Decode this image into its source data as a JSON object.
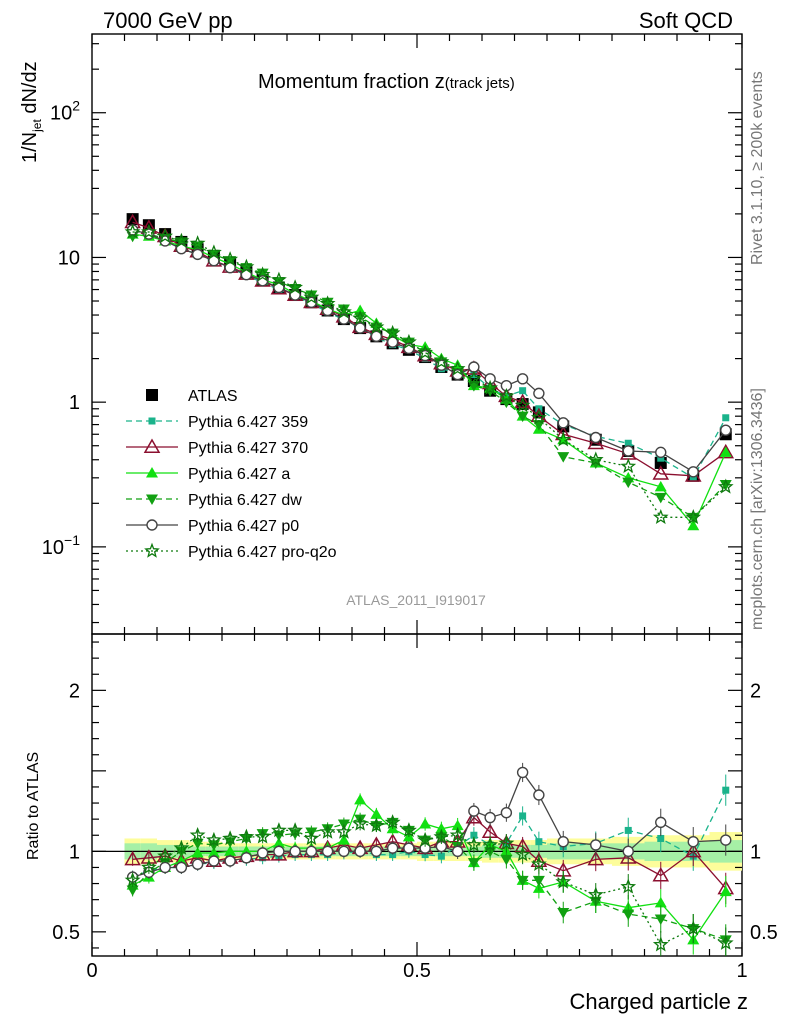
{
  "header": {
    "energy": "7000 GeV pp",
    "process": "Soft QCD"
  },
  "side_labels": {
    "rivet": "Rivet 3.1.10, ≥ 200k events",
    "mcplots": "mcplots.cern.ch [arXiv:1306.3436]"
  },
  "colors": {
    "atlas": "#000000",
    "p359": "#1ab38b",
    "p370": "#8b0f2f",
    "pa": "#11e011",
    "pdw": "#11a011",
    "pp0": "#444444",
    "pq2o": "#0e7a0e",
    "band_outer": "#fdfd9b",
    "band_inner": "#a6f0a6"
  },
  "chart_data": [
    {
      "type": "line",
      "title": "Momentum fraction z",
      "title_sub": "(track jets)",
      "ylabel_parts": [
        "1/N",
        "jet",
        " dN/dz"
      ],
      "analysis_tag": "ATLAS_2011_I919017",
      "yscale": "log",
      "ylim": [
        0.025,
        350
      ],
      "xlim": [
        0,
        1
      ],
      "y_ticks": [
        {
          "value": 100,
          "base": "10",
          "exp": "2"
        },
        {
          "value": 10,
          "base": "10",
          "exp": ""
        },
        {
          "value": 1,
          "base": "1",
          "exp": ""
        },
        {
          "value": 0.1,
          "base": "10",
          "exp": "−1"
        }
      ],
      "legend_position": "left",
      "x": [
        0.0625,
        0.0875,
        0.1125,
        0.1375,
        0.1625,
        0.1875,
        0.2125,
        0.2375,
        0.2625,
        0.2875,
        0.3125,
        0.3375,
        0.3625,
        0.3875,
        0.4125,
        0.4375,
        0.4625,
        0.4875,
        0.5125,
        0.5375,
        0.5625,
        0.5875,
        0.6125,
        0.6375,
        0.6625,
        0.6875,
        0.725,
        0.775,
        0.825,
        0.875,
        0.925,
        0.975
      ],
      "series": [
        {
          "name": "ATLAS",
          "key": "atlas",
          "marker": "square",
          "dash": "none",
          "values": [
            18.4,
            16.7,
            14.5,
            12.8,
            11.4,
            10.1,
            9.0,
            7.9,
            7.0,
            6.2,
            5.5,
            4.9,
            4.3,
            3.75,
            3.25,
            2.85,
            2.55,
            2.3,
            2.05,
            1.75,
            1.55,
            1.4,
            1.2,
            1.05,
            0.97,
            0.85,
            0.68,
            0.55,
            0.46,
            0.38,
            0.31,
            0.6
          ]
        },
        {
          "name": "Pythia 6.427 359",
          "key": "p359",
          "marker": "smallsquare",
          "dash": "6,4",
          "values": [
            15.5,
            14.0,
            13.0,
            11.5,
            10.5,
            9.4,
            8.5,
            7.5,
            6.7,
            6.0,
            5.4,
            4.8,
            4.2,
            3.7,
            3.25,
            2.8,
            2.5,
            2.3,
            2.0,
            1.7,
            1.6,
            1.55,
            1.25,
            1.1,
            1.2,
            0.9,
            0.7,
            0.58,
            0.52,
            0.41,
            0.3,
            0.78
          ]
        },
        {
          "name": "Pythia 6.427 370",
          "key": "p370",
          "marker": "tri-open",
          "dash": "none",
          "values": [
            17.5,
            16.0,
            14.0,
            12.0,
            11.0,
            9.5,
            8.6,
            7.7,
            6.9,
            6.1,
            5.5,
            4.9,
            4.4,
            3.9,
            3.3,
            2.95,
            2.7,
            2.4,
            2.1,
            1.85,
            1.65,
            1.7,
            1.35,
            1.1,
            1.0,
            0.8,
            0.6,
            0.52,
            0.44,
            0.32,
            0.31,
            0.45
          ]
        },
        {
          "name": "Pythia 6.427 a",
          "key": "pa",
          "marker": "tri-filled",
          "dash": "none",
          "values": [
            14.5,
            14.0,
            13.0,
            12.0,
            11.3,
            10.0,
            9.0,
            7.9,
            7.0,
            6.5,
            5.6,
            5.0,
            4.4,
            4.0,
            4.3,
            3.5,
            2.9,
            2.5,
            2.4,
            2.0,
            1.8,
            1.3,
            1.25,
            1.05,
            0.8,
            0.65,
            0.55,
            0.38,
            0.3,
            0.26,
            0.14,
            0.45
          ]
        },
        {
          "name": "Pythia 6.427 dw",
          "key": "pdw",
          "marker": "tri-down",
          "dash": "6,4",
          "values": [
            14.0,
            14.5,
            13.5,
            12.8,
            12.0,
            10.5,
            9.5,
            8.5,
            7.8,
            6.8,
            6.1,
            5.5,
            4.9,
            4.4,
            3.9,
            3.3,
            3.0,
            2.6,
            2.2,
            1.9,
            1.6,
            1.3,
            1.2,
            1.0,
            0.8,
            0.7,
            0.42,
            0.38,
            0.28,
            0.22,
            0.16,
            0.27
          ]
        },
        {
          "name": "Pythia 6.427 p0",
          "key": "pp0",
          "marker": "circle-open",
          "dash": "none",
          "values": [
            15.5,
            14.5,
            13.0,
            11.5,
            10.5,
            9.5,
            8.5,
            7.6,
            6.9,
            6.2,
            5.5,
            4.9,
            4.3,
            3.75,
            3.25,
            2.85,
            2.6,
            2.35,
            2.1,
            1.8,
            1.55,
            1.75,
            1.45,
            1.3,
            1.45,
            1.15,
            0.72,
            0.57,
            0.46,
            0.45,
            0.33,
            0.64
          ]
        },
        {
          "name": "Pythia 6.427 pro-q2o",
          "key": "pq2o",
          "marker": "star",
          "dash": "2,3",
          "values": [
            15.0,
            15.0,
            14.0,
            13.0,
            12.5,
            10.8,
            9.7,
            8.6,
            7.6,
            7.0,
            6.2,
            5.3,
            4.8,
            4.2,
            3.8,
            3.3,
            3.0,
            2.6,
            2.2,
            1.9,
            1.7,
            1.45,
            1.25,
            1.1,
            0.95,
            0.78,
            0.55,
            0.4,
            0.36,
            0.16,
            0.16,
            0.26
          ]
        }
      ]
    },
    {
      "type": "line",
      "ylabel": "Ratio to ATLAS",
      "xlabel": "Charged particle z",
      "ylim": [
        0.35,
        2.35
      ],
      "xlim": [
        0,
        1
      ],
      "y_ticks": [
        {
          "value": 2,
          "label": "2"
        },
        {
          "value": 1,
          "label": "1"
        },
        {
          "value": 0.5,
          "label": "0.5"
        }
      ],
      "x_ticks": [
        {
          "value": 0,
          "label": "0"
        },
        {
          "value": 0.5,
          "label": "0.5"
        },
        {
          "value": 1,
          "label": "1"
        }
      ],
      "reference_line": 1,
      "band_edges": [
        0.05,
        0.075,
        0.1,
        0.125,
        0.15,
        0.175,
        0.2,
        0.225,
        0.25,
        0.275,
        0.3,
        0.325,
        0.35,
        0.375,
        0.4,
        0.425,
        0.45,
        0.475,
        0.5,
        0.525,
        0.55,
        0.575,
        0.6,
        0.625,
        0.65,
        0.675,
        0.7,
        0.75,
        0.8,
        0.85,
        0.9,
        0.95,
        1.0
      ],
      "band_outer_halfwidth": [
        0.08,
        0.08,
        0.07,
        0.07,
        0.06,
        0.06,
        0.05,
        0.05,
        0.05,
        0.05,
        0.05,
        0.05,
        0.05,
        0.05,
        0.05,
        0.05,
        0.05,
        0.05,
        0.06,
        0.06,
        0.06,
        0.06,
        0.07,
        0.07,
        0.07,
        0.07,
        0.08,
        0.08,
        0.09,
        0.1,
        0.1,
        0.12
      ],
      "band_inner_halfwidth": [
        0.05,
        0.05,
        0.04,
        0.04,
        0.03,
        0.03,
        0.03,
        0.03,
        0.03,
        0.03,
        0.03,
        0.03,
        0.03,
        0.03,
        0.03,
        0.03,
        0.03,
        0.03,
        0.03,
        0.03,
        0.03,
        0.03,
        0.04,
        0.04,
        0.04,
        0.04,
        0.05,
        0.05,
        0.05,
        0.06,
        0.06,
        0.07
      ],
      "series": [
        {
          "key": "p359",
          "values": [
            0.84,
            0.88,
            0.9,
            0.9,
            0.92,
            0.93,
            0.95,
            0.95,
            0.96,
            0.97,
            0.98,
            0.98,
            0.98,
            0.99,
            1.0,
            0.98,
            0.98,
            1.0,
            0.98,
            0.97,
            1.03,
            1.1,
            1.04,
            1.05,
            1.22,
            1.06,
            1.03,
            1.05,
            1.13,
            1.08,
            0.97,
            1.38
          ]
        },
        {
          "key": "p370",
          "values": [
            0.95,
            0.96,
            0.97,
            0.94,
            0.96,
            0.94,
            0.96,
            0.97,
            0.98,
            0.98,
            1.0,
            1.0,
            1.02,
            1.04,
            1.02,
            1.04,
            1.06,
            1.04,
            1.02,
            1.06,
            1.06,
            1.21,
            1.12,
            1.05,
            1.03,
            0.94,
            0.88,
            0.95,
            0.96,
            0.85,
            1.0,
            0.77
          ]
        },
        {
          "key": "pa",
          "values": [
            0.79,
            0.84,
            0.9,
            0.94,
            0.99,
            0.99,
            1.0,
            1.0,
            1.0,
            1.05,
            1.02,
            1.02,
            1.02,
            1.07,
            1.32,
            1.23,
            1.14,
            1.09,
            1.17,
            1.14,
            1.16,
            0.93,
            1.04,
            1.0,
            0.82,
            0.77,
            0.81,
            0.69,
            0.65,
            0.68,
            0.45,
            0.75
          ]
        },
        {
          "key": "pdw",
          "values": [
            0.76,
            0.87,
            0.93,
            1.0,
            1.05,
            1.04,
            1.06,
            1.08,
            1.11,
            1.1,
            1.11,
            1.12,
            1.14,
            1.17,
            1.2,
            1.16,
            1.18,
            1.13,
            1.07,
            1.09,
            1.03,
            0.93,
            1.0,
            0.95,
            0.82,
            0.82,
            0.62,
            0.69,
            0.61,
            0.58,
            0.52,
            0.45
          ]
        },
        {
          "key": "pp0",
          "values": [
            0.84,
            0.87,
            0.9,
            0.9,
            0.92,
            0.94,
            0.94,
            0.96,
            0.99,
            1.0,
            1.0,
            1.0,
            1.0,
            1.0,
            1.0,
            1.0,
            1.02,
            1.02,
            1.02,
            1.03,
            1.0,
            1.25,
            1.21,
            1.24,
            1.49,
            1.35,
            1.06,
            1.04,
            1.0,
            1.18,
            1.06,
            1.07
          ]
        },
        {
          "key": "pq2o",
          "values": [
            0.82,
            0.9,
            0.97,
            1.02,
            1.1,
            1.07,
            1.08,
            1.09,
            1.09,
            1.13,
            1.13,
            1.08,
            1.12,
            1.12,
            1.17,
            1.16,
            1.18,
            1.13,
            1.07,
            1.09,
            1.1,
            1.04,
            1.04,
            1.05,
            0.98,
            0.92,
            0.81,
            0.73,
            0.78,
            0.42,
            0.52,
            0.43
          ]
        }
      ]
    }
  ]
}
